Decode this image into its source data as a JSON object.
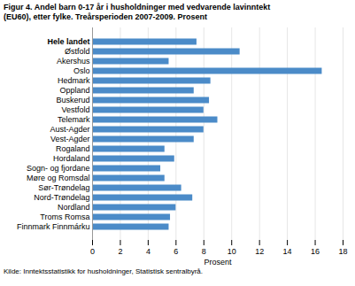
{
  "chart_data": {
    "type": "bar",
    "orientation": "horizontal",
    "title": "Figur 4. Andel barn 0-17 år i husholdninger med vedvarende lavinntekt",
    "subtitle": "(EU60), etter fylke. Treårsperioden 2007-2009. Prosent",
    "caption": "Kilde: Inntektsstatistikk for husholdninger, Statistisk sentralbyrå.",
    "categories": [
      "Hele landet",
      "Østfold",
      "Akershus",
      "Oslo",
      "Hedmark",
      "Oppland",
      "Buskerud",
      "Vestfold",
      "Telemark",
      "Aust-Agder",
      "Vest-Agder",
      "Rogaland",
      "Hordaland",
      "Sogn- og fjordane",
      "Møre og Romsdal",
      "Sør-Trøndelag",
      "Nord-Trøndelag",
      "Nordland",
      "Troms Romsa",
      "Finnmark Finnmárku"
    ],
    "values": [
      7.5,
      10.6,
      5.5,
      16.5,
      8.5,
      7.3,
      8.4,
      8.0,
      9.0,
      8.0,
      7.3,
      5.2,
      5.9,
      4.9,
      5.2,
      6.4,
      7.2,
      6.0,
      5.6,
      5.5
    ],
    "color": "#4b8bc8",
    "xlabel": "Prosent",
    "xlim": [
      0,
      18
    ],
    "xticks": [
      0,
      2,
      4,
      6,
      8,
      10,
      12,
      14,
      16,
      18
    ],
    "grid": true
  }
}
